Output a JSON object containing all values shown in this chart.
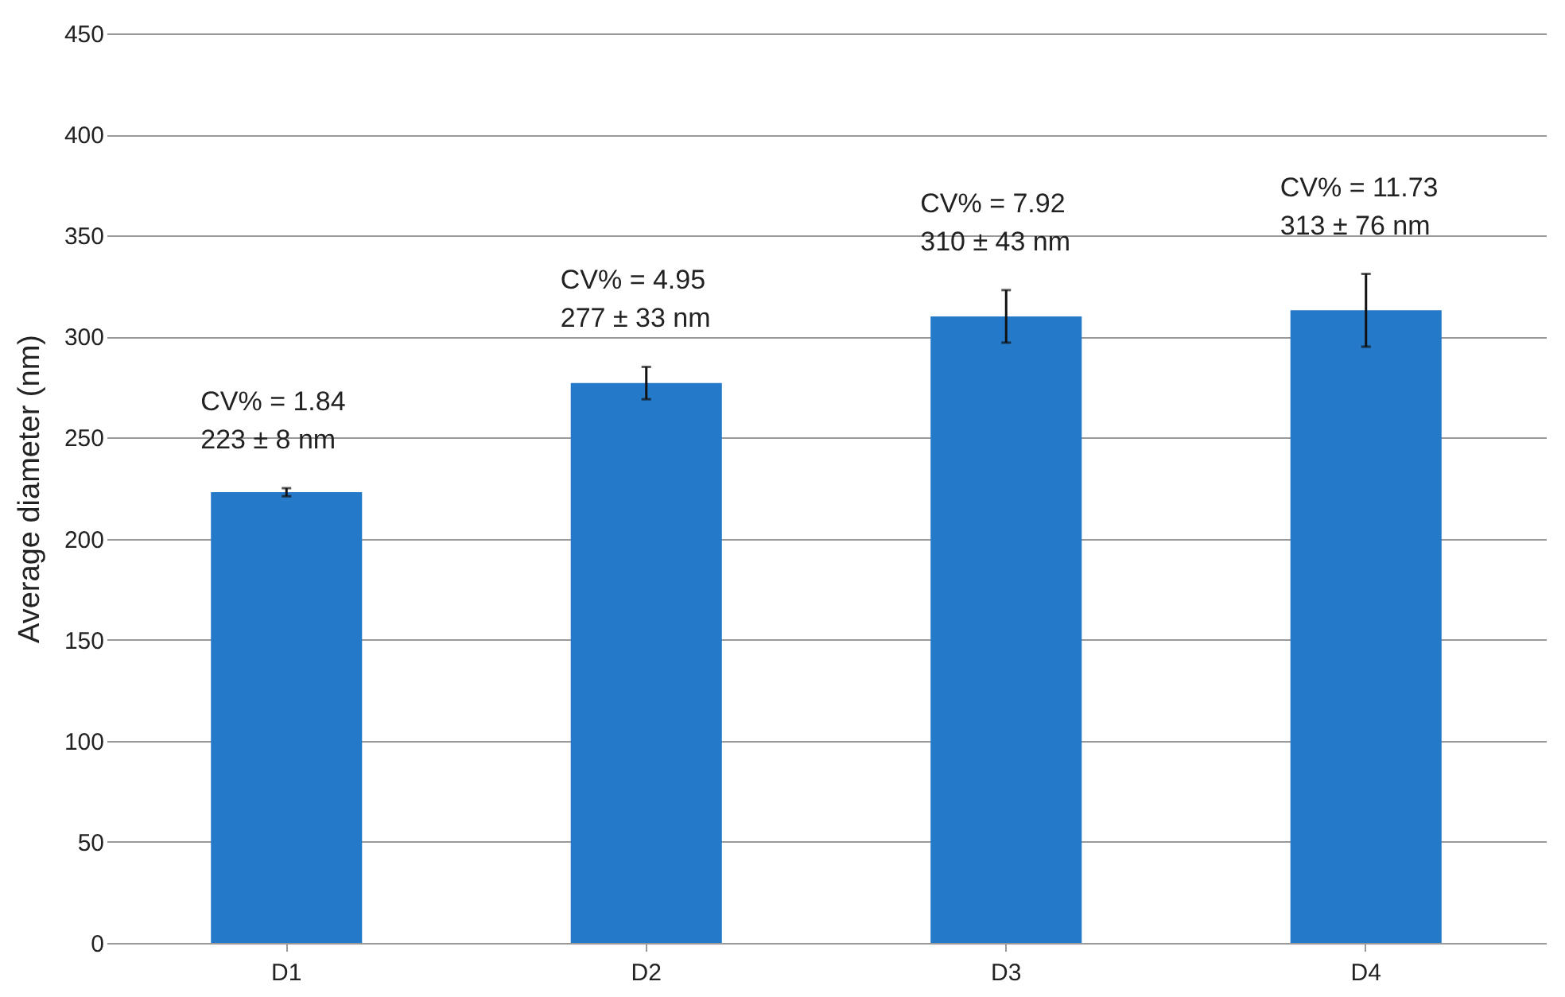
{
  "chart_data": {
    "type": "bar",
    "ylabel": "Average diameter (nm)",
    "categories": [
      "D1",
      "D2",
      "D3",
      "D4"
    ],
    "values": [
      223,
      277,
      310,
      313
    ],
    "errors": [
      2,
      8,
      13,
      18
    ],
    "color": "#2479c9",
    "ylim": [
      0,
      450
    ],
    "yticks": [
      0,
      50,
      100,
      150,
      200,
      250,
      300,
      350,
      400,
      450
    ],
    "grid": "y",
    "annotations": [
      "CV% = 1.84",
      {
        "text": "223 ± 8 nm",
        "x": "D1",
        "y": 223
      },
      "CV% = 4.95",
      {
        "text": "277 ± 33 nm",
        "x": "D2",
        "y": 277
      },
      "CV% = 7.92",
      {
        "text": "310 ± 43 nm",
        "x": "D3",
        "y": 310
      },
      "CV% = 11.73",
      {
        "text": "313 ± 76 nm",
        "x": "D4",
        "y": 313
      }
    ]
  }
}
